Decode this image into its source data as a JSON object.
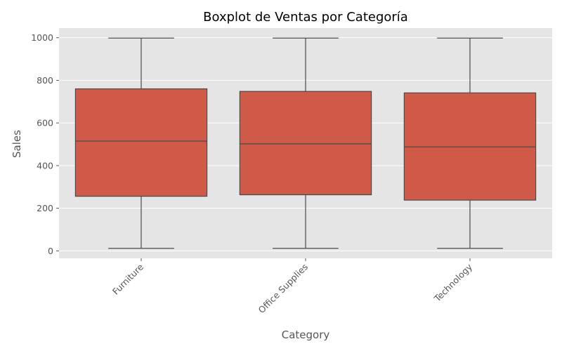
{
  "chart_data": {
    "type": "boxplot",
    "title": "Boxplot de Ventas por Categoría",
    "xlabel": "Category",
    "ylabel": "Sales",
    "ylim": [
      -35,
      1045
    ],
    "yticks": [
      0,
      200,
      400,
      600,
      800,
      1000
    ],
    "grid": true,
    "colors": {
      "box_fill": "#cf5a47",
      "plot_background": "#e5e5e5",
      "grid": "#ffffff",
      "line": "#4a4a4a"
    },
    "categories": [
      "Furniture",
      "Office Supplies",
      "Technology"
    ],
    "boxes": [
      {
        "category": "Furniture",
        "min": 12,
        "q1": 256,
        "median": 515,
        "q3": 760,
        "max": 998
      },
      {
        "category": "Office Supplies",
        "min": 12,
        "q1": 263,
        "median": 502,
        "q3": 748,
        "max": 998
      },
      {
        "category": "Technology",
        "min": 12,
        "q1": 238,
        "median": 488,
        "q3": 741,
        "max": 998
      }
    ]
  }
}
